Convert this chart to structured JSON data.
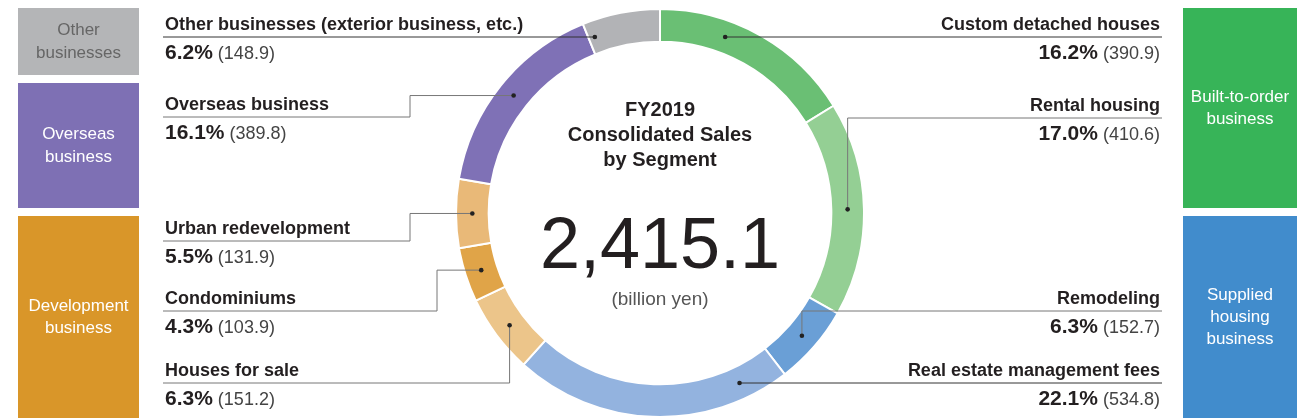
{
  "chart_data": {
    "type": "donut",
    "title": "FY2019 Consolidated Sales by Segment",
    "subtitle": "2,415.1",
    "categories": [
      "Custom detached houses",
      "Rental housing",
      "Remodeling",
      "Real estate management fees",
      "Houses for sale",
      "Condominiums",
      "Urban redevelopment",
      "Overseas business",
      "Other businesses (exterior business, etc.)"
    ],
    "values": [
      390.9,
      410.6,
      152.7,
      534.8,
      151.2,
      103.9,
      131.9,
      389.8,
      148.9
    ],
    "colors": [
      "#6abf74",
      "#94cf94",
      "#6a9fd6",
      "#93b3df",
      "#ecc58a",
      "#e0a448",
      "#e9b978",
      "#7f71b6",
      "#b2b3b6"
    ],
    "value_labels": [
      "16.2% (390.9)",
      "17.0% (410.6)",
      "6.3% (152.7)",
      "22.1% (534.8)",
      "6.3% (151.2)",
      "4.3% (103.9)",
      "5.5% (131.9)",
      "16.1% (389.8)",
      "6.2% (148.9)"
    ],
    "annotations": [
      "(billion yen)",
      "Other businesses",
      "Overseas business",
      "Development business",
      "Built-to-order business",
      "Supplied housing business"
    ]
  }
}
